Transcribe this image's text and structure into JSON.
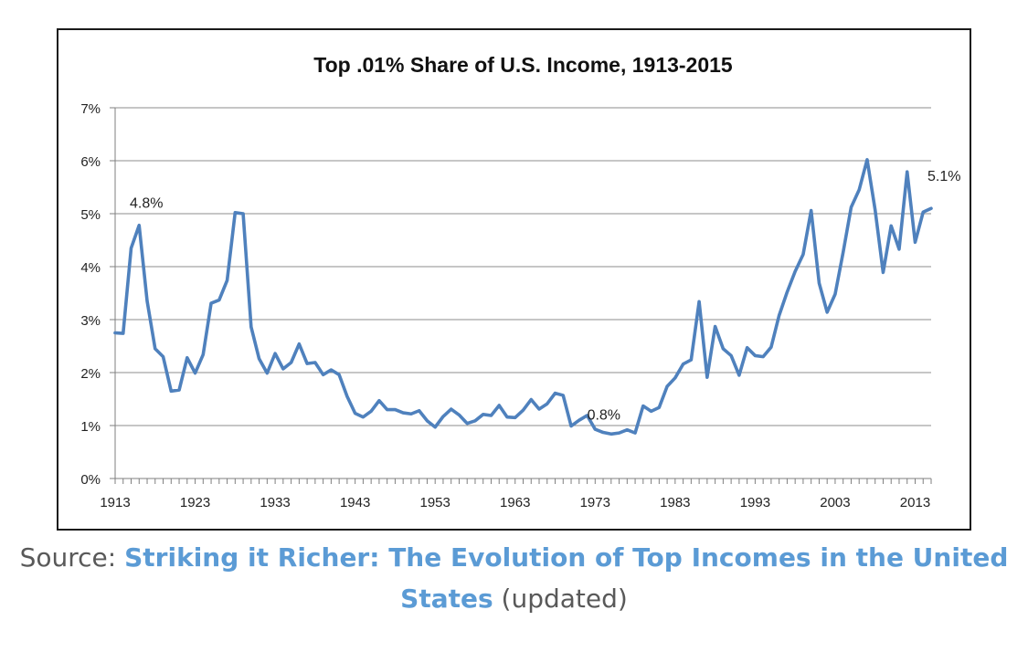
{
  "chart_data": {
    "type": "line",
    "title": "Top .01% Share of U.S. Income, 1913-2015",
    "xlabel": "",
    "ylabel": "",
    "ylim": [
      0,
      7
    ],
    "xlim": [
      1913,
      2015
    ],
    "yticks": [
      "0%",
      "1%",
      "2%",
      "3%",
      "4%",
      "5%",
      "6%",
      "7%"
    ],
    "xticks": [
      "1913",
      "1923",
      "1933",
      "1943",
      "1953",
      "1963",
      "1973",
      "1983",
      "1993",
      "2003",
      "2013"
    ],
    "grid": true,
    "legend": "none",
    "line_color": "#4f81bd",
    "series": [
      {
        "name": "Top .01% share",
        "x": [
          1913,
          1914,
          1915,
          1916,
          1917,
          1918,
          1919,
          1920,
          1921,
          1922,
          1923,
          1924,
          1925,
          1926,
          1927,
          1928,
          1929,
          1930,
          1931,
          1932,
          1933,
          1934,
          1935,
          1936,
          1937,
          1938,
          1939,
          1940,
          1941,
          1942,
          1943,
          1944,
          1945,
          1946,
          1947,
          1948,
          1949,
          1950,
          1951,
          1952,
          1953,
          1954,
          1955,
          1956,
          1957,
          1958,
          1959,
          1960,
          1961,
          1962,
          1963,
          1964,
          1965,
          1966,
          1967,
          1968,
          1969,
          1970,
          1971,
          1972,
          1973,
          1974,
          1975,
          1976,
          1977,
          1978,
          1979,
          1980,
          1981,
          1982,
          1983,
          1984,
          1985,
          1986,
          1987,
          1988,
          1989,
          1990,
          1991,
          1992,
          1993,
          1994,
          1995,
          1996,
          1997,
          1998,
          1999,
          2000,
          2001,
          2002,
          2003,
          2004,
          2005,
          2006,
          2007,
          2008,
          2009,
          2010,
          2011,
          2012,
          2013,
          2014,
          2015
        ],
        "values": [
          2.75,
          2.74,
          4.35,
          4.78,
          3.35,
          2.45,
          2.3,
          1.65,
          1.67,
          2.28,
          1.99,
          2.34,
          3.31,
          3.37,
          3.74,
          5.02,
          5.0,
          2.86,
          2.26,
          1.99,
          2.36,
          2.07,
          2.19,
          2.54,
          2.17,
          2.19,
          1.96,
          2.05,
          1.96,
          1.55,
          1.23,
          1.16,
          1.27,
          1.47,
          1.3,
          1.3,
          1.24,
          1.22,
          1.28,
          1.09,
          0.97,
          1.17,
          1.31,
          1.2,
          1.04,
          1.09,
          1.21,
          1.19,
          1.38,
          1.16,
          1.15,
          1.29,
          1.49,
          1.31,
          1.41,
          1.61,
          1.57,
          0.99,
          1.1,
          1.19,
          0.93,
          0.87,
          0.84,
          0.86,
          0.92,
          0.86,
          1.37,
          1.27,
          1.34,
          1.74,
          1.9,
          2.16,
          2.24,
          3.34,
          1.91,
          2.87,
          2.45,
          2.32,
          1.95,
          2.47,
          2.32,
          2.3,
          2.48,
          3.08,
          3.52,
          3.91,
          4.23,
          5.06,
          3.69,
          3.14,
          3.48,
          4.27,
          5.12,
          5.45,
          6.02,
          5.07,
          3.89,
          4.77,
          4.33,
          5.79,
          4.46,
          5.03,
          5.1
        ]
      }
    ],
    "annotations": [
      {
        "x": 1916,
        "y": 4.8,
        "label": "4.8%"
      },
      {
        "x": 1975,
        "y": 0.8,
        "label": "0.8%"
      },
      {
        "x": 2015,
        "y": 5.1,
        "label": "5.1%"
      }
    ]
  },
  "source": {
    "prefix": "Source: ",
    "link_text": "Striking it Richer: The Evolution of Top Incomes in the United States",
    "suffix": " (updated)"
  }
}
